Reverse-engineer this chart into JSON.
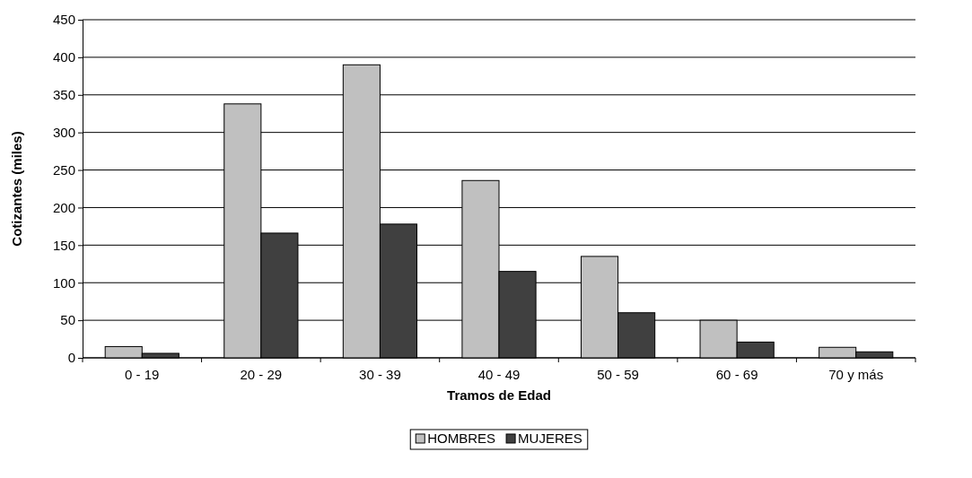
{
  "chart_data": {
    "type": "bar",
    "xlabel": "Tramos de Edad",
    "ylabel": "Cotizantes (miles)",
    "categories": [
      "0 - 19",
      "20 - 29",
      "30 - 39",
      "40 - 49",
      "50 - 59",
      "60 - 69",
      "70 y más"
    ],
    "series": [
      {
        "name": "HOMBRES",
        "color": "#c0c0c0",
        "values": [
          15,
          338,
          390,
          236,
          135,
          50,
          14
        ]
      },
      {
        "name": "MUJERES",
        "color": "#404040",
        "values": [
          6,
          166,
          178,
          115,
          60,
          21,
          8
        ]
      }
    ],
    "ylim": [
      0,
      450
    ],
    "yticks": [
      0,
      50,
      100,
      150,
      200,
      250,
      300,
      350,
      400,
      450
    ],
    "grid": "y",
    "legend": "bottom"
  }
}
